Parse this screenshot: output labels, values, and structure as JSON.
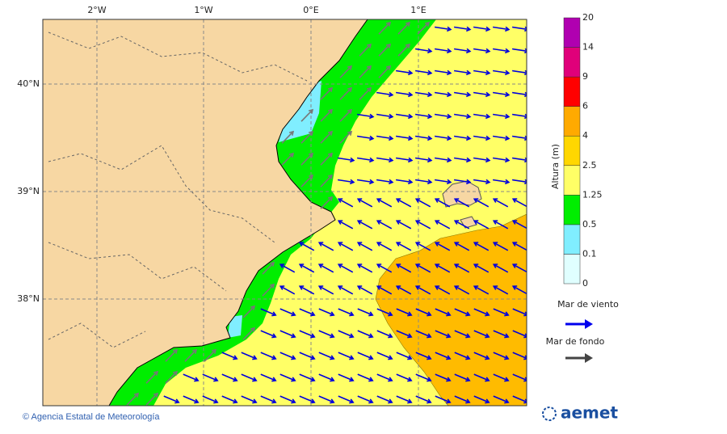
{
  "map": {
    "x_labels": [
      "2°W",
      "1°W",
      "0°E",
      "1°E"
    ],
    "y_labels": [
      "40°N",
      "39°N",
      "38°N"
    ],
    "colorbar": {
      "title": "Altura (m)",
      "labels": [
        "0",
        "0.1",
        "0.5",
        "1.25",
        "2.5",
        "4",
        "6",
        "9",
        "14",
        "20"
      ]
    },
    "legend": {
      "wind_sea": "Mar de viento",
      "swell": "Mar de fondo"
    }
  },
  "footer": {
    "credit": "© Agencia Estatal de Meteorología",
    "logo": "aemet"
  }
}
